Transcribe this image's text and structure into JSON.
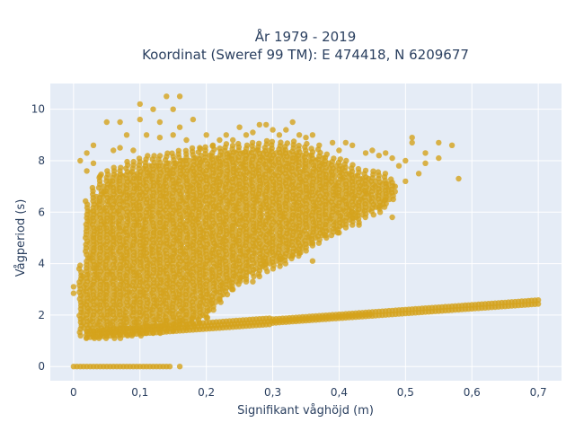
{
  "chart_data": {
    "type": "scatter",
    "title_line1": "År 1979 - 2019",
    "title_line2": "Koordinat (Sweref 99 TM): E 474418, N 6209677",
    "xlabel": "Signifikant våghöjd (m)",
    "ylabel": "Vågperiod (s)",
    "xlim": [
      -0.035,
      0.735
    ],
    "ylim": [
      -0.55,
      11.0
    ],
    "x_ticks": [
      0,
      0.1,
      0.2,
      0.3,
      0.4,
      0.5,
      0.6,
      0.7
    ],
    "x_tick_labels": [
      "0",
      "0,1",
      "0,2",
      "0,3",
      "0,4",
      "0,5",
      "0,6",
      "0,7"
    ],
    "y_ticks": [
      0,
      2,
      4,
      6,
      8,
      10
    ],
    "y_tick_labels": [
      "0",
      "2",
      "4",
      "6",
      "8",
      "10"
    ],
    "grid": true,
    "colors": {
      "marker": "#D4A21B",
      "plot_bg": "#E5ECF6",
      "grid": "#ffffff",
      "text": "#2a3f5f"
    },
    "main_cloud": [
      [
        0.01,
        1.2,
        4.0
      ],
      [
        0.02,
        1.1,
        6.5
      ],
      [
        0.03,
        1.1,
        7.0
      ],
      [
        0.04,
        1.1,
        7.5
      ],
      [
        0.05,
        1.1,
        7.6
      ],
      [
        0.06,
        1.1,
        7.8
      ],
      [
        0.07,
        1.1,
        7.8
      ],
      [
        0.08,
        1.2,
        8.0
      ],
      [
        0.09,
        1.2,
        8.0
      ],
      [
        0.1,
        1.2,
        8.1
      ],
      [
        0.11,
        1.3,
        8.2
      ],
      [
        0.12,
        1.3,
        8.2
      ],
      [
        0.13,
        1.3,
        8.3
      ],
      [
        0.14,
        1.4,
        8.3
      ],
      [
        0.15,
        1.4,
        8.4
      ],
      [
        0.16,
        1.5,
        8.4
      ],
      [
        0.17,
        1.5,
        8.5
      ],
      [
        0.18,
        1.6,
        8.5
      ],
      [
        0.19,
        1.7,
        8.5
      ],
      [
        0.2,
        1.9,
        8.6
      ],
      [
        0.21,
        2.2,
        8.6
      ],
      [
        0.22,
        2.5,
        8.6
      ],
      [
        0.23,
        2.8,
        8.7
      ],
      [
        0.24,
        3.0,
        8.7
      ],
      [
        0.25,
        3.2,
        8.7
      ],
      [
        0.26,
        3.4,
        8.7
      ],
      [
        0.27,
        3.5,
        8.8
      ],
      [
        0.28,
        3.6,
        8.8
      ],
      [
        0.29,
        3.7,
        8.8
      ],
      [
        0.3,
        3.8,
        8.8
      ],
      [
        0.31,
        3.9,
        8.8
      ],
      [
        0.32,
        4.0,
        8.8
      ],
      [
        0.33,
        4.2,
        8.8
      ],
      [
        0.34,
        4.3,
        8.7
      ],
      [
        0.35,
        4.5,
        8.7
      ],
      [
        0.36,
        4.7,
        8.5
      ],
      [
        0.37,
        4.8,
        8.5
      ],
      [
        0.38,
        5.0,
        8.3
      ],
      [
        0.39,
        5.1,
        8.2
      ],
      [
        0.4,
        5.2,
        8.1
      ],
      [
        0.41,
        5.4,
        8.0
      ],
      [
        0.42,
        5.5,
        7.9
      ],
      [
        0.43,
        5.6,
        7.8
      ],
      [
        0.44,
        5.8,
        7.7
      ],
      [
        0.45,
        5.9,
        7.7
      ],
      [
        0.46,
        6.0,
        7.6
      ],
      [
        0.47,
        6.2,
        7.5
      ],
      [
        0.48,
        6.5,
        7.4
      ]
    ],
    "lower_band": {
      "x_start": 0.02,
      "x_end": 0.7,
      "step": 0.005,
      "y_start": 1.25,
      "y_slope": 1.85,
      "spread": 0.15
    },
    "zero_row": [
      0,
      0.005,
      0.01,
      0.015,
      0.02,
      0.025,
      0.03,
      0.035,
      0.04,
      0.045,
      0.05,
      0.055,
      0.06,
      0.065,
      0.07,
      0.075,
      0.08,
      0.085,
      0.09,
      0.095,
      0.1,
      0.105,
      0.11,
      0.115,
      0.12,
      0.125,
      0.13,
      0.135,
      0.14,
      0.145,
      0.16
    ],
    "scattered_points": [
      [
        0.0,
        2.85
      ],
      [
        0.0,
        3.1
      ],
      [
        0.01,
        8.0
      ],
      [
        0.02,
        7.6
      ],
      [
        0.02,
        8.3
      ],
      [
        0.03,
        8.6
      ],
      [
        0.03,
        7.9
      ],
      [
        0.04,
        7.4
      ],
      [
        0.05,
        9.5
      ],
      [
        0.06,
        8.4
      ],
      [
        0.07,
        9.5
      ],
      [
        0.07,
        8.5
      ],
      [
        0.08,
        9.0
      ],
      [
        0.09,
        8.4
      ],
      [
        0.1,
        10.2
      ],
      [
        0.1,
        9.6
      ],
      [
        0.11,
        9.0
      ],
      [
        0.12,
        10.0
      ],
      [
        0.13,
        9.5
      ],
      [
        0.13,
        8.9
      ],
      [
        0.14,
        10.5
      ],
      [
        0.15,
        9.0
      ],
      [
        0.15,
        10.0
      ],
      [
        0.16,
        10.5
      ],
      [
        0.16,
        9.3
      ],
      [
        0.17,
        8.8
      ],
      [
        0.18,
        9.6
      ],
      [
        0.19,
        8.5
      ],
      [
        0.2,
        9.0
      ],
      [
        0.21,
        8.6
      ],
      [
        0.22,
        8.8
      ],
      [
        0.23,
        9.0
      ],
      [
        0.24,
        8.8
      ],
      [
        0.25,
        9.3
      ],
      [
        0.26,
        9.0
      ],
      [
        0.27,
        9.1
      ],
      [
        0.28,
        9.4
      ],
      [
        0.29,
        9.4
      ],
      [
        0.3,
        9.2
      ],
      [
        0.31,
        9.0
      ],
      [
        0.32,
        9.2
      ],
      [
        0.33,
        9.5
      ],
      [
        0.34,
        9.0
      ],
      [
        0.35,
        8.9
      ],
      [
        0.36,
        9.0
      ],
      [
        0.37,
        8.6
      ],
      [
        0.39,
        8.7
      ],
      [
        0.4,
        8.4
      ],
      [
        0.41,
        8.7
      ],
      [
        0.42,
        8.6
      ],
      [
        0.44,
        8.3
      ],
      [
        0.45,
        8.4
      ],
      [
        0.46,
        8.2
      ],
      [
        0.47,
        8.3
      ],
      [
        0.48,
        8.1
      ],
      [
        0.49,
        7.8
      ],
      [
        0.5,
        8.0
      ],
      [
        0.51,
        8.9
      ],
      [
        0.51,
        8.7
      ],
      [
        0.53,
        7.9
      ],
      [
        0.55,
        8.1
      ],
      [
        0.55,
        8.7
      ],
      [
        0.57,
        8.6
      ],
      [
        0.58,
        7.3
      ],
      [
        0.53,
        8.3
      ],
      [
        0.52,
        7.5
      ],
      [
        0.5,
        7.2
      ],
      [
        0.47,
        6.5
      ],
      [
        0.46,
        6.2
      ],
      [
        0.44,
        6.8
      ],
      [
        0.42,
        6.0
      ],
      [
        0.42,
        5.8
      ],
      [
        0.38,
        5.1
      ],
      [
        0.36,
        4.8
      ],
      [
        0.36,
        4.1
      ],
      [
        0.34,
        4.4
      ],
      [
        0.33,
        4.3
      ],
      [
        0.31,
        4.2
      ],
      [
        0.29,
        4.0
      ],
      [
        0.28,
        3.5
      ],
      [
        0.26,
        3.3
      ],
      [
        0.27,
        3.3
      ],
      [
        0.25,
        3.4
      ],
      [
        0.24,
        3.0
      ],
      [
        0.22,
        2.6
      ],
      [
        0.2,
        1.9
      ],
      [
        0.18,
        1.9
      ],
      [
        0.16,
        1.8
      ],
      [
        0.14,
        1.8
      ],
      [
        0.13,
        1.5
      ],
      [
        0.11,
        1.6
      ],
      [
        0.48,
        5.8
      ],
      [
        0.43,
        5.5
      ],
      [
        0.4,
        5.2
      ]
    ]
  }
}
